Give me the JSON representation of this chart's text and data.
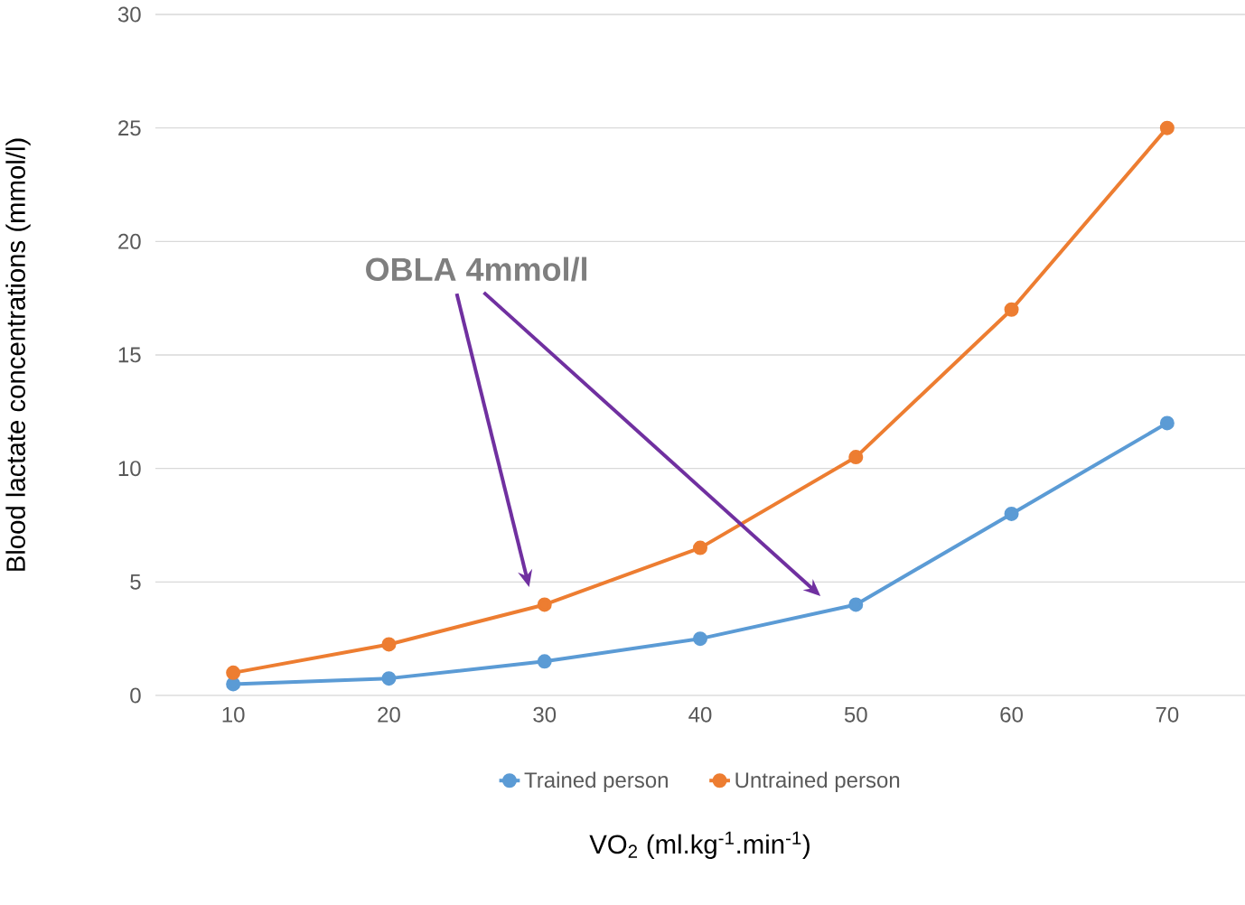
{
  "chart_data": {
    "type": "line",
    "xlabel": "VO$_{2}$ (ml.kg$^{-1}$.min$^{-1}$)",
    "ylabel": "Blood lactate concentrations (mmol/l)",
    "categories": [
      "10",
      "20",
      "30",
      "40",
      "50",
      "60",
      "70"
    ],
    "series": [
      {
        "name": "Trained person",
        "color": "#5b9bd5",
        "values": [
          0.5,
          0.75,
          1.5,
          2.5,
          4,
          8,
          12
        ]
      },
      {
        "name": "Untrained person",
        "color": "#ed7d31",
        "values": [
          1,
          2.25,
          4,
          6.5,
          10.5,
          17,
          25
        ]
      }
    ],
    "ylim": [
      0,
      30
    ],
    "yticks": [
      0,
      5,
      10,
      15,
      20,
      25,
      30
    ],
    "grid": "y",
    "legend": "bottom",
    "marker": "circle",
    "line_style": "solid",
    "annotations": [
      "OBLA  4mmol/l"
    ]
  }
}
